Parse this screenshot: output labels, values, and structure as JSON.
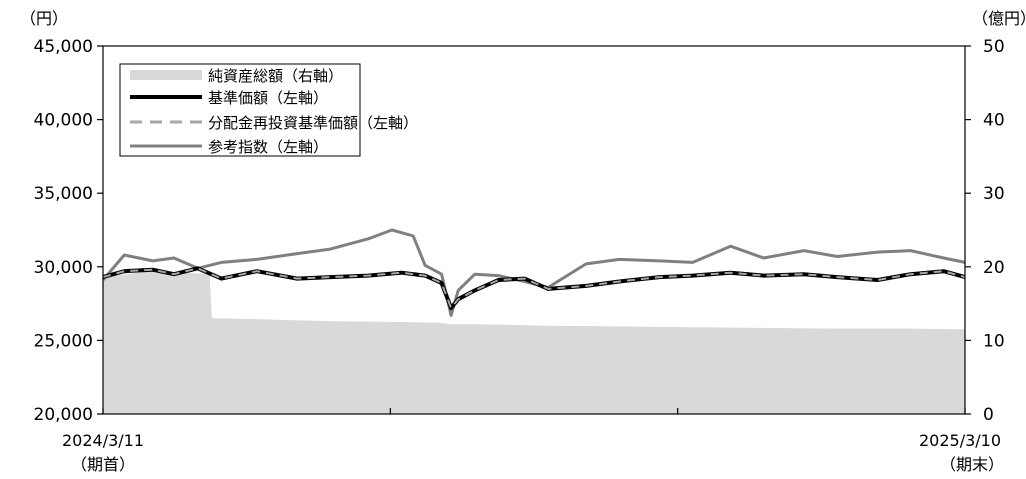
{
  "chart_data": {
    "type": "line",
    "left_unit": "（円）",
    "right_unit": "（億円）",
    "left_axis": {
      "ticks": [
        "20,000",
        "25,000",
        "30,000",
        "35,000",
        "40,000",
        "45,000"
      ],
      "ylim": [
        20000,
        45000
      ]
    },
    "right_axis": {
      "ticks": [
        "0",
        "10",
        "20",
        "30",
        "40",
        "50"
      ],
      "ylim": [
        0,
        50
      ]
    },
    "x_start_label": "2024/3/11",
    "x_start_sub": "（期首）",
    "x_end_label": "2025/3/10",
    "x_end_sub": "（期末）",
    "x_range": [
      "2024-03-11",
      "2025-03-10"
    ],
    "grid": false,
    "legend_position": "top-left",
    "legend": [
      "純資産総額（右軸）",
      "基準価額（左軸）",
      "分配金再投資基準価額（左軸）",
      "参考指数（左軸）"
    ],
    "colors": {
      "net_assets": "#d9d9d9",
      "nav": "#000000",
      "reinvested": "#a6a6a6",
      "reference": "#808080"
    },
    "series": [
      {
        "name": "純資産総額（右軸）",
        "axis": "right",
        "x": [
          "2024-03-11",
          "2024-04-01",
          "2024-04-15",
          "2024-04-25",
          "2024-04-26",
          "2024-05-15",
          "2024-06-15",
          "2024-07-15",
          "2024-07-31",
          "2024-08-05",
          "2024-08-15",
          "2024-09-15",
          "2024-10-15",
          "2024-11-15",
          "2024-12-15",
          "2025-01-15",
          "2025-02-15",
          "2025-03-10"
        ],
        "values": [
          18.5,
          19.5,
          19.2,
          19.0,
          13.0,
          12.9,
          12.6,
          12.5,
          12.4,
          12.2,
          12.2,
          12.0,
          11.9,
          11.8,
          11.7,
          11.6,
          11.6,
          11.5
        ]
      },
      {
        "name": "基準価額（左軸）",
        "axis": "left",
        "x": [
          "2024-03-11",
          "2024-03-20",
          "2024-04-01",
          "2024-04-10",
          "2024-04-20",
          "2024-04-30",
          "2024-05-15",
          "2024-06-01",
          "2024-06-15",
          "2024-07-01",
          "2024-07-15",
          "2024-07-25",
          "2024-08-01",
          "2024-08-05",
          "2024-08-08",
          "2024-08-15",
          "2024-08-25",
          "2024-09-05",
          "2024-09-15",
          "2024-10-01",
          "2024-10-15",
          "2024-11-01",
          "2024-11-15",
          "2024-12-01",
          "2024-12-15",
          "2025-01-01",
          "2025-01-15",
          "2025-02-01",
          "2025-02-15",
          "2025-03-01",
          "2025-03-10"
        ],
        "values": [
          29300,
          29700,
          29800,
          29500,
          29900,
          29200,
          29700,
          29200,
          29300,
          29400,
          29600,
          29400,
          28900,
          27200,
          27800,
          28400,
          29100,
          29200,
          28500,
          28700,
          29000,
          29300,
          29400,
          29600,
          29400,
          29500,
          29300,
          29100,
          29500,
          29700,
          29300
        ]
      },
      {
        "name": "分配金再投資基準価額（左軸）",
        "axis": "left",
        "x": [
          "2024-03-11",
          "2024-03-20",
          "2024-04-01",
          "2024-04-10",
          "2024-04-20",
          "2024-04-30",
          "2024-05-15",
          "2024-06-01",
          "2024-06-15",
          "2024-07-01",
          "2024-07-15",
          "2024-07-25",
          "2024-08-01",
          "2024-08-05",
          "2024-08-08",
          "2024-08-15",
          "2024-08-25",
          "2024-09-05",
          "2024-09-15",
          "2024-10-01",
          "2024-10-15",
          "2024-11-01",
          "2024-11-15",
          "2024-12-01",
          "2024-12-15",
          "2025-01-01",
          "2025-01-15",
          "2025-02-01",
          "2025-02-15",
          "2025-03-01",
          "2025-03-10"
        ],
        "values": [
          29300,
          29700,
          29800,
          29500,
          29900,
          29200,
          29700,
          29200,
          29300,
          29400,
          29600,
          29400,
          28900,
          27200,
          27800,
          28400,
          29100,
          29200,
          28500,
          28700,
          29000,
          29300,
          29400,
          29600,
          29400,
          29500,
          29300,
          29100,
          29500,
          29700,
          29300
        ]
      },
      {
        "name": "参考指数（左軸）",
        "axis": "left",
        "x": [
          "2024-03-11",
          "2024-03-20",
          "2024-04-01",
          "2024-04-10",
          "2024-04-20",
          "2024-04-30",
          "2024-05-15",
          "2024-06-01",
          "2024-06-15",
          "2024-07-01",
          "2024-07-11",
          "2024-07-20",
          "2024-07-25",
          "2024-08-01",
          "2024-08-05",
          "2024-08-08",
          "2024-08-15",
          "2024-08-25",
          "2024-09-05",
          "2024-09-15",
          "2024-10-01",
          "2024-10-15",
          "2024-11-01",
          "2024-11-15",
          "2024-12-01",
          "2024-12-15",
          "2025-01-01",
          "2025-01-15",
          "2025-02-01",
          "2025-02-15",
          "2025-03-01",
          "2025-03-10"
        ],
        "values": [
          29100,
          30800,
          30400,
          30600,
          29900,
          30300,
          30500,
          30900,
          31200,
          31900,
          32500,
          32100,
          30100,
          29500,
          26700,
          28400,
          29500,
          29400,
          29000,
          28600,
          30200,
          30500,
          30400,
          30300,
          31400,
          30600,
          31100,
          30700,
          31000,
          31100,
          30600,
          30300
        ]
      }
    ]
  }
}
